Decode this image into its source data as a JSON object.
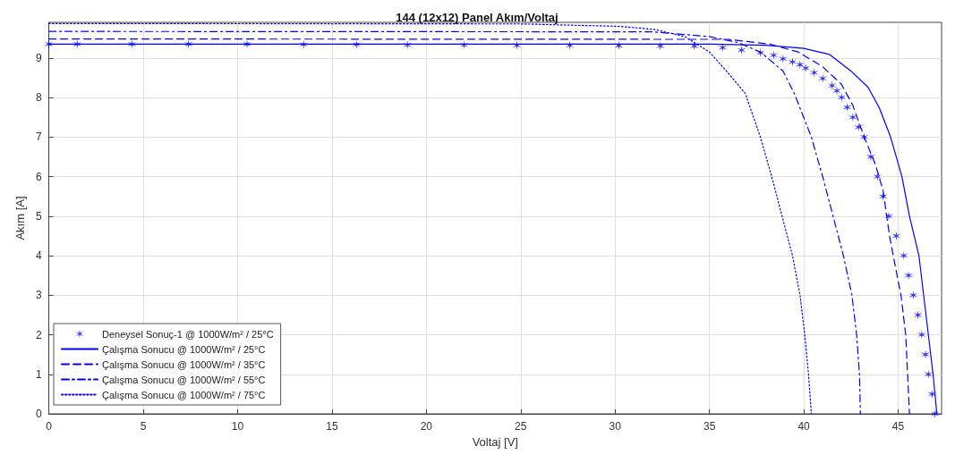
{
  "chart_data": {
    "type": "line",
    "title": "144 (12x12) Panel Akım/Voltaj",
    "xlabel": "Voltaj [V]",
    "ylabel": "Akım [A]",
    "xlim": [
      0,
      47.3
    ],
    "xticks": [
      0,
      5,
      10,
      15,
      20,
      25,
      30,
      35,
      40,
      45
    ],
    "ylim": [
      0,
      9.9
    ],
    "yticks": [
      0,
      1,
      2,
      3,
      4,
      5,
      6,
      7,
      8,
      9
    ],
    "grid": true,
    "legend": "bottom left",
    "series": [
      {
        "name": "Deneysel Sonuç-1 @ 1000W/m² / 25°C",
        "type": "scatter",
        "marker": "cross",
        "color": "#0000ff",
        "x": [
          0,
          1.5,
          4.4,
          7.4,
          10.5,
          13.5,
          16.3,
          19.0,
          22.0,
          24.8,
          27.6,
          30.2,
          32.4,
          34.2,
          35.7,
          36.7,
          37.7,
          38.4,
          38.9,
          39.4,
          39.8,
          40.1,
          40.55,
          41.0,
          41.5,
          41.75,
          42.0,
          42.3,
          42.6,
          42.9,
          43.2,
          43.55,
          43.9,
          44.2,
          44.5,
          44.9,
          45.3,
          45.55,
          45.8,
          46.05,
          46.25,
          46.45,
          46.6,
          46.8,
          46.95
        ],
        "values": [
          9.35,
          9.35,
          9.35,
          9.35,
          9.35,
          9.34,
          9.34,
          9.33,
          9.33,
          9.32,
          9.32,
          9.31,
          9.3,
          9.3,
          9.26,
          9.2,
          9.13,
          9.07,
          8.98,
          8.9,
          8.83,
          8.74,
          8.63,
          8.48,
          8.3,
          8.17,
          8.0,
          7.75,
          7.5,
          7.25,
          7.0,
          6.5,
          6.0,
          5.5,
          5.0,
          4.5,
          4.0,
          3.5,
          3.0,
          2.5,
          2.0,
          1.5,
          1.0,
          0.5,
          0
        ]
      },
      {
        "name": "Çalışma Sonucu @ 1000W/m² / 25°C",
        "line_style": "solid",
        "color": "#0000ff",
        "x": [
          0,
          35,
          38,
          40,
          41.35,
          42.5,
          43.4,
          44.0,
          44.6,
          45.2,
          45.6,
          46.1,
          46.35,
          46.6,
          46.85,
          47.05
        ],
        "values": [
          9.35,
          9.35,
          9.32,
          9.24,
          9.09,
          8.67,
          8.26,
          7.74,
          7.0,
          6.0,
          5.0,
          4.0,
          3.0,
          2.0,
          1.0,
          0
        ]
      },
      {
        "name": "Çalışma Sonucu @ 1000W/m² / 35°C",
        "line_style": "dashed",
        "color": "#0000ff",
        "x": [
          0,
          36,
          38.2,
          39.7,
          41,
          42,
          42.6,
          43.2,
          43.8,
          44.2,
          44.55,
          44.9,
          45.15,
          45.4,
          45.5,
          45.6
        ],
        "values": [
          9.48,
          9.47,
          9.35,
          9.15,
          8.78,
          8.33,
          7.8,
          7.0,
          6.3,
          5.65,
          4.48,
          3.6,
          3.0,
          2.0,
          1.0,
          0
        ]
      },
      {
        "name": "Çalışma Sonucu @ 1000W/m² / 55°C",
        "line_style": "dashdot",
        "color": "#0000ff",
        "x": [
          0,
          32,
          35.0,
          36.5,
          37.7,
          38.9,
          39.5,
          40.4,
          41.0,
          41.55,
          42.1,
          42.55,
          42.8,
          42.95,
          43.0
        ],
        "values": [
          9.67,
          9.66,
          9.54,
          9.39,
          9.15,
          8.67,
          8.1,
          7.0,
          6.0,
          5.0,
          4.0,
          3.0,
          2.0,
          1.0,
          0
        ]
      },
      {
        "name": "Çalışma Sonucu @ 1000W/m² / 75°C",
        "line_style": "dotted",
        "color": "#0000ff",
        "x": [
          0,
          25,
          30.2,
          32.1,
          33.7,
          35.0,
          36.1,
          36.9,
          37.7,
          38.3,
          38.85,
          39.4,
          39.8,
          40.05,
          40.25,
          40.4
        ],
        "values": [
          9.87,
          9.86,
          9.8,
          9.72,
          9.54,
          9.15,
          8.56,
          8.1,
          7.0,
          6.0,
          5.0,
          4.0,
          3.0,
          2.0,
          1.0,
          0
        ]
      }
    ]
  }
}
